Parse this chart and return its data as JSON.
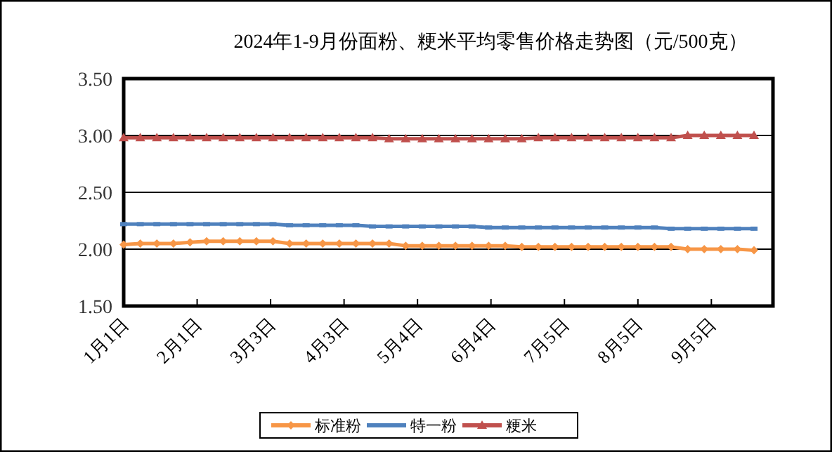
{
  "chart_data": {
    "type": "line",
    "title": "2024年1-9月份面粉、粳米平均零售价格走势图（元/500克）",
    "x": [
      "2024-01-01",
      "2024-01-08",
      "2024-01-15",
      "2024-01-22",
      "2024-01-29",
      "2024-02-05",
      "2024-02-12",
      "2024-02-19",
      "2024-02-26",
      "2024-03-04",
      "2024-03-11",
      "2024-03-18",
      "2024-03-25",
      "2024-04-01",
      "2024-04-08",
      "2024-04-15",
      "2024-04-22",
      "2024-04-29",
      "2024-05-06",
      "2024-05-13",
      "2024-05-20",
      "2024-05-27",
      "2024-06-03",
      "2024-06-10",
      "2024-06-17",
      "2024-06-24",
      "2024-07-01",
      "2024-07-08",
      "2024-07-15",
      "2024-07-22",
      "2024-07-29",
      "2024-08-05",
      "2024-08-12",
      "2024-08-19",
      "2024-08-26",
      "2024-09-02",
      "2024-09-09",
      "2024-09-16",
      "2024-09-23"
    ],
    "series": [
      {
        "name": "标准粉",
        "color": "#f79646",
        "marker": "diamond",
        "values": [
          2.04,
          2.05,
          2.05,
          2.05,
          2.06,
          2.07,
          2.07,
          2.07,
          2.07,
          2.07,
          2.05,
          2.05,
          2.05,
          2.05,
          2.05,
          2.05,
          2.05,
          2.03,
          2.03,
          2.03,
          2.03,
          2.03,
          2.03,
          2.03,
          2.02,
          2.02,
          2.02,
          2.02,
          2.02,
          2.02,
          2.02,
          2.02,
          2.02,
          2.02,
          2.0,
          2.0,
          2.0,
          2.0,
          1.99
        ]
      },
      {
        "name": "特一粉",
        "color": "#4f81bd",
        "marker": "square",
        "values": [
          2.22,
          2.22,
          2.22,
          2.22,
          2.22,
          2.22,
          2.22,
          2.22,
          2.22,
          2.22,
          2.21,
          2.21,
          2.21,
          2.21,
          2.21,
          2.2,
          2.2,
          2.2,
          2.2,
          2.2,
          2.2,
          2.2,
          2.19,
          2.19,
          2.19,
          2.19,
          2.19,
          2.19,
          2.19,
          2.19,
          2.19,
          2.19,
          2.19,
          2.18,
          2.18,
          2.18,
          2.18,
          2.18,
          2.18
        ]
      },
      {
        "name": "粳米",
        "color": "#c0504d",
        "marker": "triangle",
        "values": [
          2.98,
          2.98,
          2.98,
          2.98,
          2.98,
          2.98,
          2.98,
          2.98,
          2.98,
          2.98,
          2.98,
          2.98,
          2.98,
          2.98,
          2.98,
          2.98,
          2.97,
          2.97,
          2.97,
          2.97,
          2.97,
          2.97,
          2.97,
          2.97,
          2.97,
          2.98,
          2.98,
          2.98,
          2.98,
          2.98,
          2.98,
          2.98,
          2.98,
          2.98,
          3.0,
          3.0,
          3.0,
          3.0,
          3.0
        ]
      }
    ],
    "xlim": [
      "2024-01-01",
      "2024-10-01"
    ],
    "xticks": [
      {
        "value": "2024-01-01",
        "label": "1月1日"
      },
      {
        "value": "2024-02-01",
        "label": "2月1日"
      },
      {
        "value": "2024-03-03",
        "label": "3月3日"
      },
      {
        "value": "2024-04-03",
        "label": "4月3日"
      },
      {
        "value": "2024-05-04",
        "label": "5月4日"
      },
      {
        "value": "2024-06-04",
        "label": "6月4日"
      },
      {
        "value": "2024-07-05",
        "label": "7月5日"
      },
      {
        "value": "2024-08-05",
        "label": "8月5日"
      },
      {
        "value": "2024-09-05",
        "label": "9月5日"
      }
    ],
    "ylim": [
      1.5,
      3.5
    ],
    "yticks": [
      {
        "value": 1.5,
        "label": "1.50"
      },
      {
        "value": 2,
        "label": "2.00"
      },
      {
        "value": 2.5,
        "label": "2.50"
      },
      {
        "value": 3,
        "label": "3.00"
      },
      {
        "value": 3.5,
        "label": "3.50"
      }
    ],
    "grid": "y",
    "legend": "bottom",
    "line_style": "solid"
  }
}
